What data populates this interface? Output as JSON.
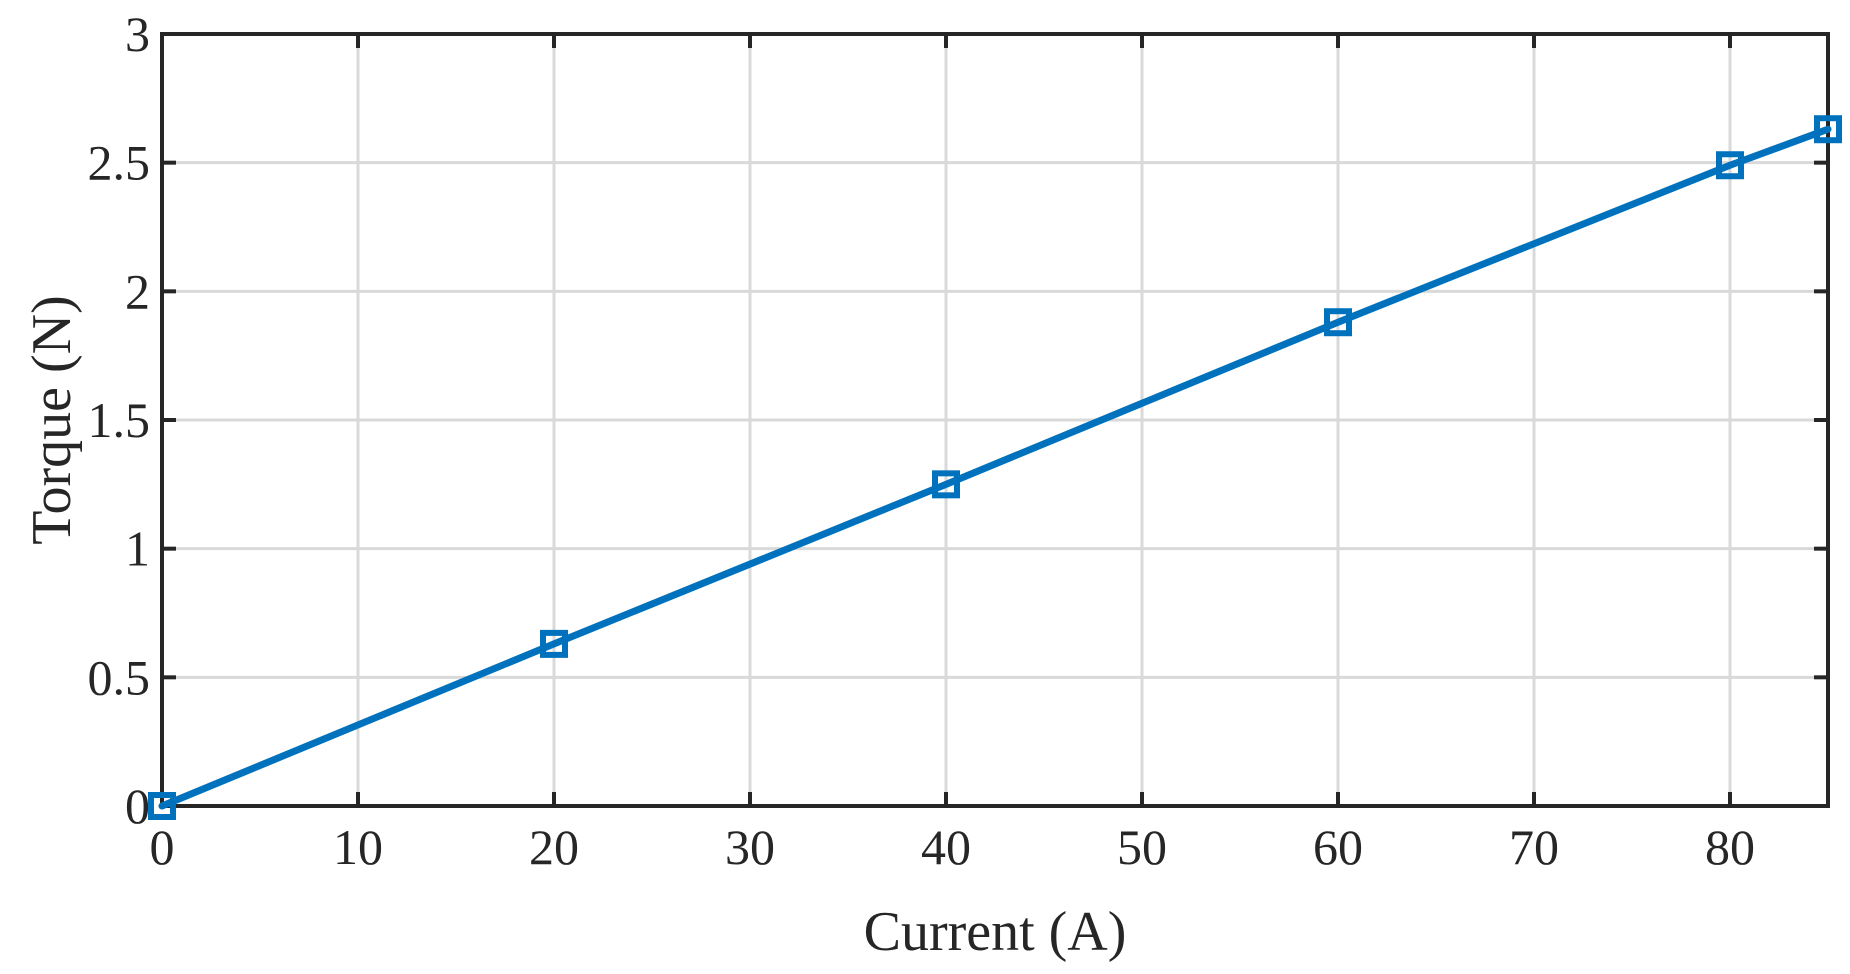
{
  "chart_data": {
    "type": "line",
    "title": "",
    "xlabel": "Current (A)",
    "ylabel": "Torque (N)",
    "xlim": [
      0,
      85
    ],
    "ylim": [
      0,
      3
    ],
    "x_ticks": [
      0,
      10,
      20,
      30,
      40,
      50,
      60,
      70,
      80
    ],
    "y_ticks": [
      0,
      0.5,
      1,
      1.5,
      2,
      2.5,
      3
    ],
    "x_tick_labels": [
      "0",
      "10",
      "20",
      "30",
      "40",
      "50",
      "60",
      "70",
      "80"
    ],
    "y_tick_labels": [
      "0",
      "0.5",
      "1",
      "1.5",
      "2",
      "2.5",
      "3"
    ],
    "grid": true,
    "legend": "none",
    "series": [
      {
        "x": [
          0,
          20,
          40,
          60,
          80,
          85
        ],
        "y": [
          0,
          0.63,
          1.25,
          1.88,
          2.49,
          2.63
        ],
        "marker": "square",
        "color": "#0072BD"
      }
    ]
  },
  "colors": {
    "series": "#0072BD",
    "grid": "#d9d9d9",
    "axis": "#262626",
    "background": "#ffffff"
  }
}
